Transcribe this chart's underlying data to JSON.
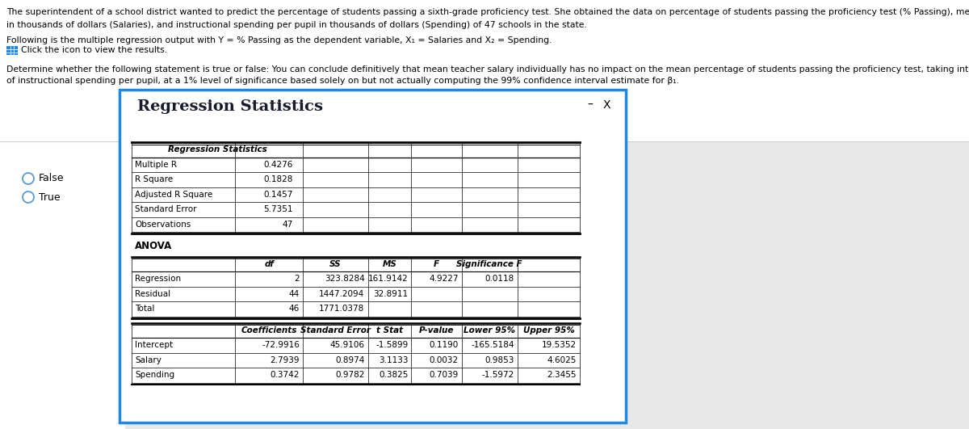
{
  "title_text": "The superintendent of a school district wanted to predict the percentage of students passing a sixth-grade proficiency test. She obtained the data on percentage of students passing the proficiency test (% Passing), mean teacher salary",
  "title_text2": "in thousands of dollars (Salaries), and instructional spending per pupil in thousands of dollars (Spending) of 47 schools in the state.",
  "line2": "Following is the multiple regression output with Y = % Passing as the dependent variable, X₁ = Salaries and X₂ = Spending.",
  "line3": "Click the icon to view the results.",
  "line4a": "Determine whether the following statement is true or false: You can conclude definitively that mean teacher salary individually has no impact on the mean percentage of students passing the proficiency test, taking into account the effect",
  "line4b": "of instructional spending per pupil, at a 1% level of significance based solely on but not actually computing the 99% confidence interval estimate for β₁.",
  "dialog_title": "Regression Statistics",
  "reg_stats_header": "Regression Statistics",
  "reg_stats_rows": [
    [
      "Multiple R",
      "0.4276"
    ],
    [
      "R Square",
      "0.1828"
    ],
    [
      "Adjusted R Square",
      "0.1457"
    ],
    [
      "Standard Error",
      "5.7351"
    ],
    [
      "Observations",
      "47"
    ]
  ],
  "anova_label": "ANOVA",
  "anova_headers": [
    "df",
    "SS",
    "MS",
    "F",
    "Significance F"
  ],
  "anova_rows": [
    [
      "Regression",
      "2",
      "323.8284",
      "161.9142",
      "4.9227",
      "0.0118"
    ],
    [
      "Residual",
      "44",
      "1447.2094",
      "32.8911",
      "",
      ""
    ],
    [
      "Total",
      "46",
      "1771.0378",
      "",
      "",
      ""
    ]
  ],
  "coef_headers": [
    "Coefficients",
    "Standard Error",
    "t Stat",
    "P-value",
    "Lower 95%",
    "Upper 95%"
  ],
  "coef_rows": [
    [
      "Intercept",
      "-72.9916",
      "45.9106",
      "-1.5899",
      "0.1190",
      "-165.5184",
      "19.5352"
    ],
    [
      "Salary",
      "2.7939",
      "0.8974",
      "3.1133",
      "0.0032",
      "0.9853",
      "4.6025"
    ],
    [
      "Spending",
      "0.3742",
      "0.9782",
      "0.3825",
      "0.7039",
      "-1.5972",
      "2.3455"
    ]
  ],
  "radio_options": [
    "False",
    "True"
  ],
  "bg_color": "#e8e8e8",
  "white": "#ffffff",
  "dialog_border": "#1E88E5",
  "icon_color": "#1E88E5"
}
